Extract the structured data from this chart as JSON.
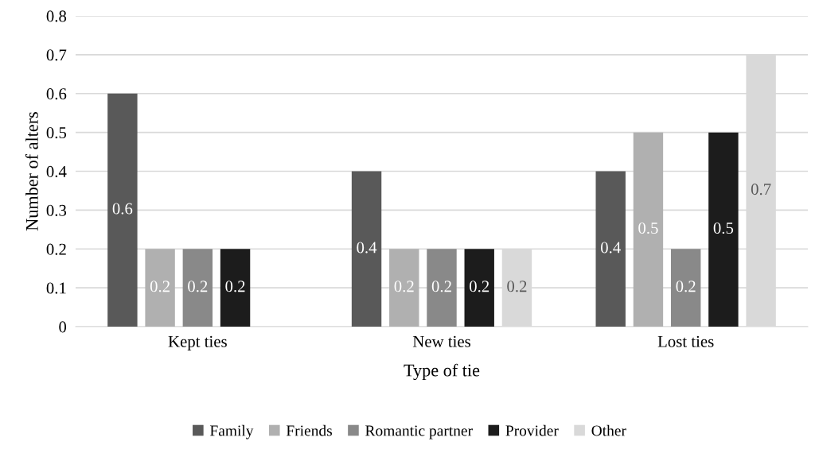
{
  "chart_data": {
    "type": "bar",
    "xlabel": "Type of tie",
    "ylabel": "Number of alters",
    "categories": [
      "Kept ties",
      "New ties",
      "Lost ties"
    ],
    "series": [
      {
        "name": "Family",
        "color": "#595959",
        "values": [
          0.6,
          0.4,
          0.4
        ]
      },
      {
        "name": "Friends",
        "color": "#b0b0b0",
        "values": [
          0.2,
          0.2,
          0.5
        ]
      },
      {
        "name": "Romantic partner",
        "color": "#898989",
        "values": [
          0.2,
          0.2,
          0.2
        ]
      },
      {
        "name": "Provider",
        "color": "#1c1c1c",
        "values": [
          0.2,
          0.2,
          0.5
        ]
      },
      {
        "name": "Other",
        "color": "#d9d9d9",
        "values": [
          null,
          0.2,
          0.7
        ]
      }
    ],
    "ylim": [
      0,
      0.8
    ],
    "yticks": [
      {
        "value": 0,
        "label": "0"
      },
      0.1,
      0.2,
      0.3,
      0.4,
      0.5,
      0.6,
      0.7,
      0.8
    ],
    "grid": "y",
    "legend": "bottom",
    "data_labels": true
  }
}
